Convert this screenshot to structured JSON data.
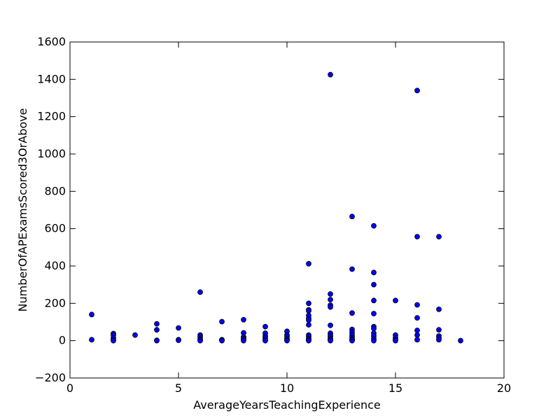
{
  "chart_data": {
    "type": "scatter",
    "title": "",
    "xlabel": "AverageYearsTeachingExperience",
    "ylabel": "NumberOfAPExamsScored3OrAbove",
    "xlim": [
      0,
      20
    ],
    "ylim": [
      -200,
      1600
    ],
    "xticks": [
      0,
      5,
      10,
      15,
      20
    ],
    "yticks": [
      -200,
      0,
      200,
      400,
      600,
      800,
      1000,
      1200,
      1400,
      1600
    ],
    "grid": false,
    "marker_color": "#0000ff",
    "marker_edge_color": "#000000",
    "points": [
      [
        1,
        140
      ],
      [
        1,
        5
      ],
      [
        2,
        38
      ],
      [
        2,
        30
      ],
      [
        2,
        15
      ],
      [
        2,
        5
      ],
      [
        2,
        0
      ],
      [
        3,
        30
      ],
      [
        4,
        90
      ],
      [
        4,
        58
      ],
      [
        4,
        2
      ],
      [
        4,
        0
      ],
      [
        5,
        68
      ],
      [
        5,
        5
      ],
      [
        5,
        2
      ],
      [
        6,
        260
      ],
      [
        6,
        30
      ],
      [
        6,
        20
      ],
      [
        6,
        10
      ],
      [
        6,
        3
      ],
      [
        6,
        0
      ],
      [
        7,
        102
      ],
      [
        7,
        5
      ],
      [
        7,
        2
      ],
      [
        7,
        0
      ],
      [
        8,
        112
      ],
      [
        8,
        42
      ],
      [
        8,
        20
      ],
      [
        8,
        12
      ],
      [
        8,
        5
      ],
      [
        8,
        0
      ],
      [
        9,
        75
      ],
      [
        9,
        40
      ],
      [
        9,
        25
      ],
      [
        9,
        15
      ],
      [
        9,
        5
      ],
      [
        9,
        0
      ],
      [
        10,
        50
      ],
      [
        10,
        30
      ],
      [
        10,
        20
      ],
      [
        10,
        10
      ],
      [
        10,
        5
      ],
      [
        10,
        0
      ],
      [
        11,
        412
      ],
      [
        11,
        200
      ],
      [
        11,
        165
      ],
      [
        11,
        160
      ],
      [
        11,
        135
      ],
      [
        11,
        120
      ],
      [
        11,
        110
      ],
      [
        11,
        85
      ],
      [
        11,
        30
      ],
      [
        11,
        20
      ],
      [
        11,
        10
      ],
      [
        11,
        5
      ],
      [
        11,
        0
      ],
      [
        12,
        1425
      ],
      [
        12,
        250
      ],
      [
        12,
        220
      ],
      [
        12,
        190
      ],
      [
        12,
        180
      ],
      [
        12,
        82
      ],
      [
        12,
        40
      ],
      [
        12,
        30
      ],
      [
        12,
        20
      ],
      [
        12,
        10
      ],
      [
        12,
        5
      ],
      [
        12,
        0
      ],
      [
        13,
        665
      ],
      [
        13,
        383
      ],
      [
        13,
        148
      ],
      [
        13,
        60
      ],
      [
        13,
        45
      ],
      [
        13,
        30
      ],
      [
        13,
        20
      ],
      [
        13,
        10
      ],
      [
        13,
        5
      ],
      [
        13,
        0
      ],
      [
        14,
        615
      ],
      [
        14,
        365
      ],
      [
        14,
        300
      ],
      [
        14,
        215
      ],
      [
        14,
        145
      ],
      [
        14,
        75
      ],
      [
        14,
        65
      ],
      [
        14,
        40
      ],
      [
        14,
        25
      ],
      [
        14,
        10
      ],
      [
        14,
        0
      ],
      [
        15,
        215
      ],
      [
        15,
        30
      ],
      [
        15,
        15
      ],
      [
        15,
        5
      ],
      [
        15,
        0
      ],
      [
        16,
        1340
      ],
      [
        16,
        557
      ],
      [
        16,
        192
      ],
      [
        16,
        122
      ],
      [
        16,
        55
      ],
      [
        16,
        30
      ],
      [
        16,
        5
      ],
      [
        17,
        557
      ],
      [
        17,
        168
      ],
      [
        17,
        58
      ],
      [
        17,
        25
      ],
      [
        17,
        15
      ],
      [
        17,
        5
      ],
      [
        18,
        0
      ]
    ]
  }
}
